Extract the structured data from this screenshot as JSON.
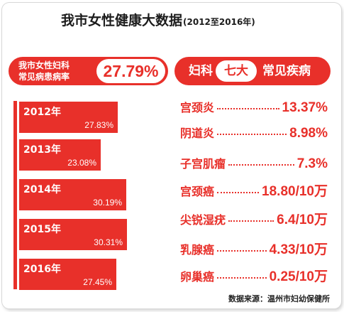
{
  "title": "我市女性健康大数据",
  "subtitle": "(2012至2016年)",
  "rate": {
    "label_line1": "我市女性妇科",
    "label_line2": "常见病患病率",
    "value": "27.79%"
  },
  "top7": {
    "prefix": "妇科",
    "highlight": "七大",
    "suffix": "常见疾病"
  },
  "years": [
    {
      "year": "2012年",
      "pct": "27.83%",
      "value": 27.83
    },
    {
      "year": "2013年",
      "pct": "23.08%",
      "value": 23.08
    },
    {
      "year": "2014年",
      "pct": "30.19%",
      "value": 30.19
    },
    {
      "year": "2015年",
      "pct": "30.31%",
      "value": 30.31
    },
    {
      "year": "2016年",
      "pct": "27.45%",
      "value": 27.45
    }
  ],
  "diseases": [
    {
      "name": "宫颈炎",
      "value": "13.37%"
    },
    {
      "name": "阴道炎",
      "value": "8.98%"
    },
    {
      "name": "子宫肌瘤",
      "value": "7.3%"
    },
    {
      "name": "宫颈癌",
      "value": "18.80/10万"
    },
    {
      "name": "尖锐湿疣",
      "value": "6.4/10万"
    },
    {
      "name": "乳腺癌",
      "value": "4.33/10万"
    },
    {
      "name": "卵巢癌",
      "value": "0.25/10万"
    }
  ],
  "source": "数据来源：温州市妇幼保健所",
  "colors": {
    "accent": "#e8302a",
    "text": "#1c1c1c"
  }
}
